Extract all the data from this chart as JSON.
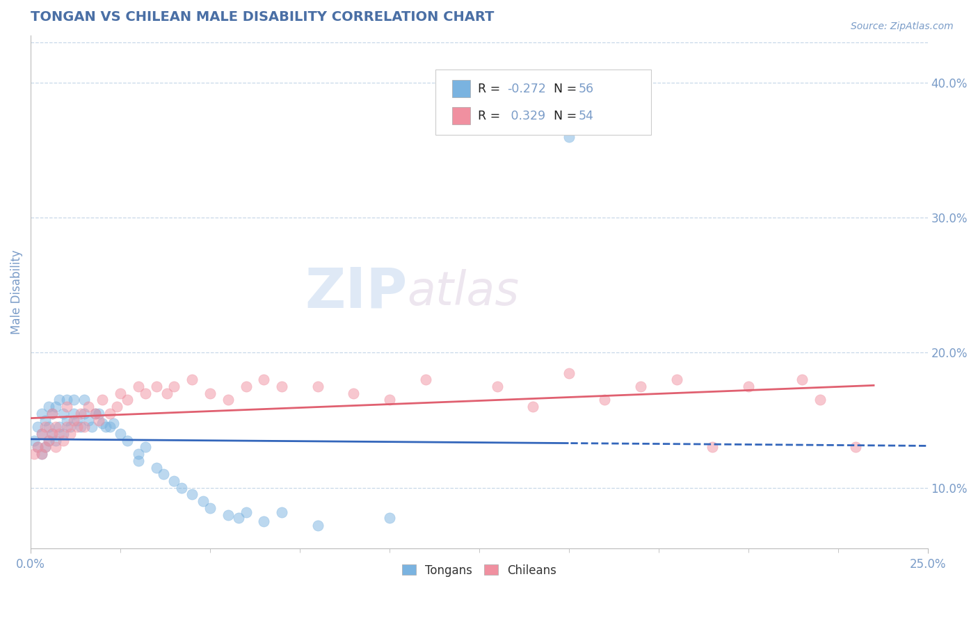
{
  "title": "TONGAN VS CHILEAN MALE DISABILITY CORRELATION CHART",
  "source": "Source: ZipAtlas.com",
  "ylabel": "Male Disability",
  "xmin": 0.0,
  "xmax": 0.25,
  "ymin": 0.055,
  "ymax": 0.435,
  "yticks": [
    0.1,
    0.2,
    0.3,
    0.4
  ],
  "ytick_labels": [
    "10.0%",
    "20.0%",
    "30.0%",
    "40.0%"
  ],
  "tongan_color": "#7ab3e0",
  "chilean_color": "#f090a0",
  "line_tongan_color": "#3366bb",
  "line_chilean_color": "#e06070",
  "watermark_zip_color": "#c8d8ec",
  "watermark_atlas_color": "#d8c8d8",
  "title_color": "#4a6fa5",
  "axis_label_color": "#7a9cc8",
  "grid_color": "#c8d8e8",
  "background_color": "#ffffff",
  "tongan_r": -0.272,
  "tongan_n": 56,
  "chilean_r": 0.329,
  "chilean_n": 54,
  "tong_x": [
    0.001,
    0.002,
    0.002,
    0.003,
    0.003,
    0.003,
    0.004,
    0.004,
    0.005,
    0.005,
    0.005,
    0.006,
    0.006,
    0.007,
    0.007,
    0.008,
    0.008,
    0.009,
    0.009,
    0.01,
    0.01,
    0.011,
    0.012,
    0.012,
    0.013,
    0.014,
    0.015,
    0.015,
    0.016,
    0.017,
    0.018,
    0.019,
    0.02,
    0.021,
    0.022,
    0.023,
    0.025,
    0.027,
    0.03,
    0.03,
    0.032,
    0.035,
    0.037,
    0.04,
    0.042,
    0.045,
    0.048,
    0.05,
    0.055,
    0.058,
    0.06,
    0.065,
    0.07,
    0.08,
    0.1,
    0.15
  ],
  "tong_y": [
    0.135,
    0.13,
    0.145,
    0.125,
    0.14,
    0.155,
    0.13,
    0.15,
    0.135,
    0.145,
    0.16,
    0.14,
    0.155,
    0.135,
    0.16,
    0.145,
    0.165,
    0.14,
    0.155,
    0.15,
    0.165,
    0.145,
    0.155,
    0.165,
    0.15,
    0.145,
    0.155,
    0.165,
    0.15,
    0.145,
    0.155,
    0.155,
    0.148,
    0.145,
    0.145,
    0.148,
    0.14,
    0.135,
    0.12,
    0.125,
    0.13,
    0.115,
    0.11,
    0.105,
    0.1,
    0.095,
    0.09,
    0.085,
    0.08,
    0.078,
    0.082,
    0.075,
    0.082,
    0.072,
    0.078,
    0.36
  ],
  "chil_x": [
    0.001,
    0.002,
    0.003,
    0.003,
    0.004,
    0.004,
    0.005,
    0.006,
    0.006,
    0.007,
    0.007,
    0.008,
    0.009,
    0.01,
    0.01,
    0.011,
    0.012,
    0.013,
    0.014,
    0.015,
    0.016,
    0.018,
    0.019,
    0.02,
    0.022,
    0.024,
    0.025,
    0.027,
    0.03,
    0.032,
    0.035,
    0.038,
    0.04,
    0.045,
    0.05,
    0.055,
    0.06,
    0.065,
    0.07,
    0.08,
    0.09,
    0.1,
    0.11,
    0.13,
    0.14,
    0.15,
    0.16,
    0.17,
    0.18,
    0.19,
    0.2,
    0.215,
    0.22,
    0.23
  ],
  "chil_y": [
    0.125,
    0.13,
    0.125,
    0.14,
    0.13,
    0.145,
    0.135,
    0.14,
    0.155,
    0.13,
    0.145,
    0.14,
    0.135,
    0.145,
    0.16,
    0.14,
    0.15,
    0.145,
    0.155,
    0.145,
    0.16,
    0.155,
    0.15,
    0.165,
    0.155,
    0.16,
    0.17,
    0.165,
    0.175,
    0.17,
    0.175,
    0.17,
    0.175,
    0.18,
    0.17,
    0.165,
    0.175,
    0.18,
    0.175,
    0.175,
    0.17,
    0.165,
    0.18,
    0.175,
    0.16,
    0.185,
    0.165,
    0.175,
    0.18,
    0.13,
    0.175,
    0.18,
    0.165,
    0.13
  ]
}
